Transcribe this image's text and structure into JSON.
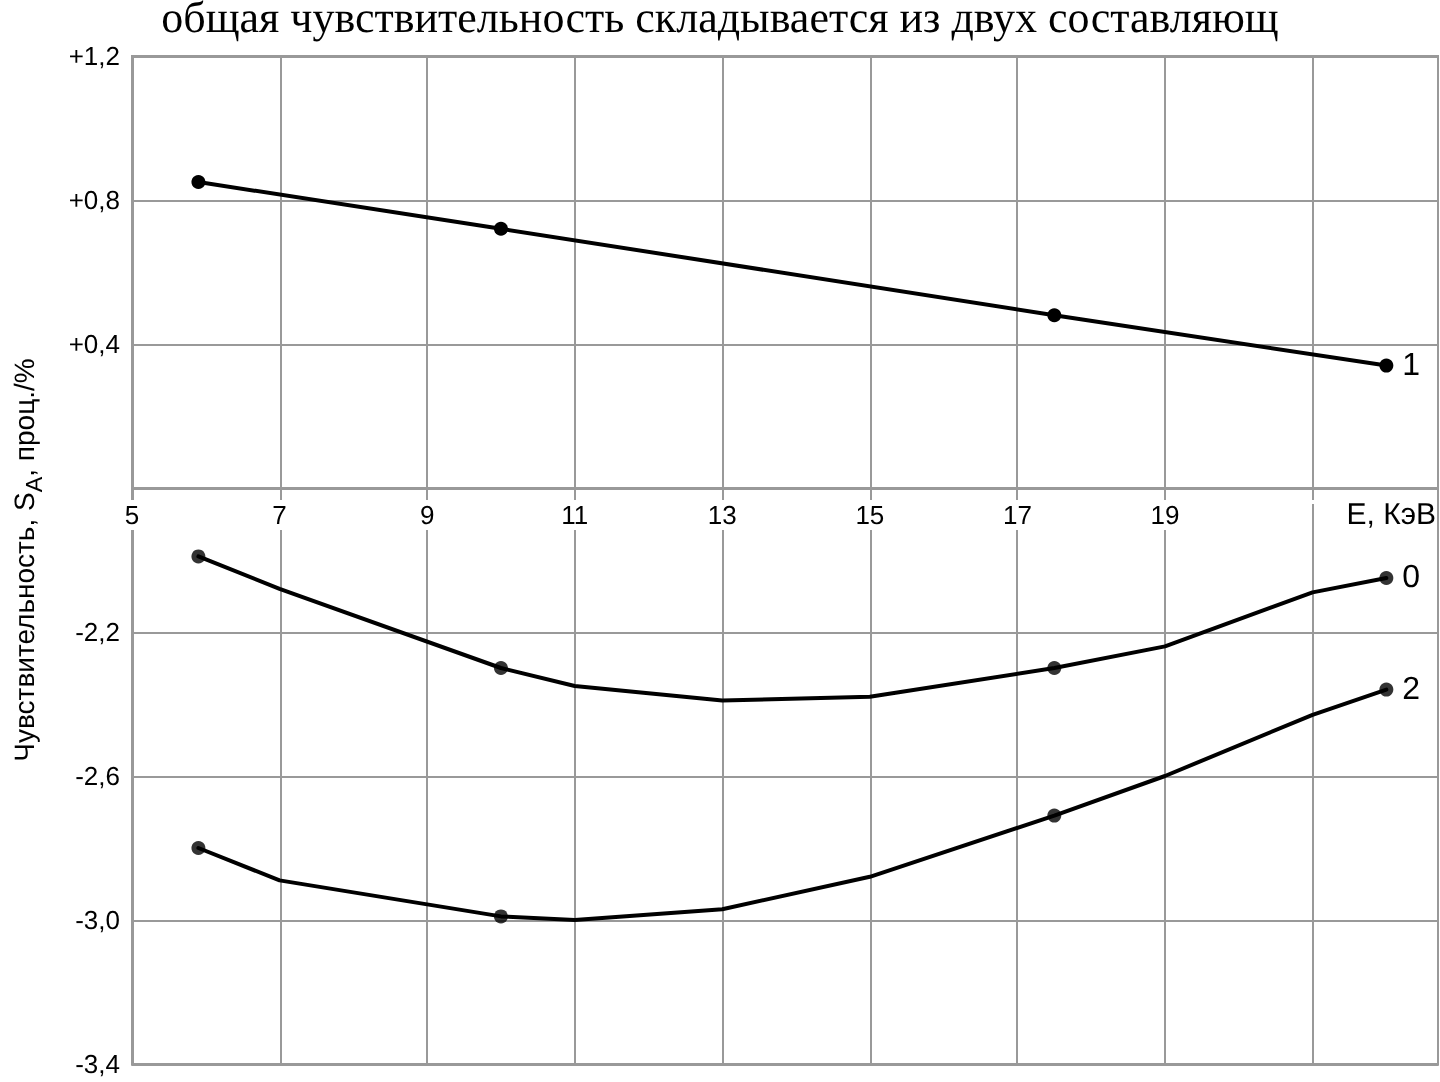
{
  "chart_data": [
    {
      "type": "line",
      "annotations": [
        "общая чувствительность складывается из двух составляющ"
      ],
      "ylabel": "Чувствительность, S$_{A}$, проц./%",
      "xlabel": "E, КэВ",
      "xlim": [
        5,
        22.7
      ],
      "xticks": [
        5,
        7,
        9,
        11,
        13,
        15,
        17,
        19,
        {
          "value": 21,
          "label": null
        }
      ],
      "ylim": [
        0,
        1.2
      ],
      "yticks": [
        {
          "value": 0,
          "label": null
        },
        {
          "value": 0.4,
          "label": "+0,4"
        },
        {
          "value": 0.8,
          "label": "+0,8"
        },
        {
          "value": 1.2,
          "label": "+1,2"
        }
      ],
      "grid": true,
      "marker": "circle",
      "line_style": "solid",
      "legend": "right",
      "series": [
        {
          "name": "1",
          "color": "#000000",
          "x": [
            5.9,
            10.0,
            17.5,
            22.0
          ],
          "values": [
            0.85,
            0.72,
            0.48,
            0.34
          ]
        }
      ]
    },
    {
      "type": "line",
      "xlim": [
        5,
        22.7
      ],
      "xticks": [
        5,
        7,
        9,
        11,
        13,
        15,
        17,
        19,
        {
          "value": 21,
          "label": null
        }
      ],
      "ylim": [
        -3.4,
        -1.8
      ],
      "yticks": [
        {
          "value": -3.4,
          "label": "-3,4"
        },
        {
          "value": -3.0,
          "label": "-3,0"
        },
        {
          "value": -2.6,
          "label": "-2,6"
        },
        {
          "value": -2.2,
          "label": "-2,2"
        },
        {
          "value": -1.8,
          "label": null
        }
      ],
      "grid": true,
      "tick_labels": "y",
      "line_style": "solid",
      "legend": "right",
      "series": [
        {
          "name": "0",
          "color": "#000000",
          "marker": "none",
          "x": [
            5.9,
            7,
            10.0,
            11,
            13,
            15,
            17.5,
            19,
            21,
            22.0
          ],
          "values": [
            -1.99,
            -2.08,
            -2.3,
            -2.35,
            -2.39,
            -2.38,
            -2.3,
            -2.24,
            -2.09,
            -2.05
          ]
        },
        {
          "type": "scatter",
          "color": "#000000",
          "marker": "circle",
          "x": [
            5.9,
            10.0,
            17.5,
            22.0
          ],
          "values": [
            -1.99,
            -2.3,
            -2.3,
            -2.05
          ]
        },
        {
          "name": "2",
          "color": "#000000",
          "marker": "none",
          "x": [
            5.9,
            7,
            10.0,
            11,
            13,
            15,
            17.5,
            19,
            21,
            22.0
          ],
          "values": [
            -2.8,
            -2.89,
            -2.99,
            -3.0,
            -2.97,
            -2.88,
            -2.71,
            -2.6,
            -2.43,
            -2.36
          ]
        },
        {
          "type": "scatter",
          "color": "#000000",
          "marker": "circle",
          "x": [
            5.9,
            10.0,
            17.5,
            22.0
          ],
          "values": [
            -2.8,
            -2.99,
            -2.71,
            -2.36
          ]
        }
      ]
    }
  ]
}
